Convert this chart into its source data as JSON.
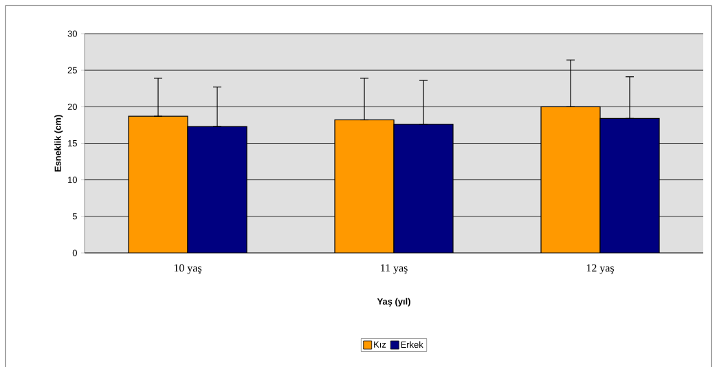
{
  "chart_data": {
    "type": "bar",
    "xlabel": "Yaş (yıl)",
    "ylabel": "Esneklik (cm)",
    "categories": [
      "10 yaş",
      "11 yaş",
      "12 yaş"
    ],
    "series": [
      {
        "name": "Kız",
        "color": "#ff9900",
        "values": [
          18.7,
          18.2,
          20.0
        ],
        "errors": [
          [
            18.7,
            23.9
          ],
          [
            18.2,
            23.9
          ],
          [
            20.0,
            26.4
          ]
        ]
      },
      {
        "name": "Erkek",
        "color": "#000080",
        "values": [
          17.3,
          17.6,
          18.4
        ],
        "errors": [
          [
            17.3,
            22.7
          ],
          [
            17.6,
            23.6
          ],
          [
            18.4,
            24.1
          ]
        ]
      }
    ],
    "ylim": [
      0,
      30
    ],
    "yticks": [
      0,
      5,
      10,
      15,
      20,
      25,
      30
    ],
    "grid": "y",
    "legend": "bottom"
  }
}
